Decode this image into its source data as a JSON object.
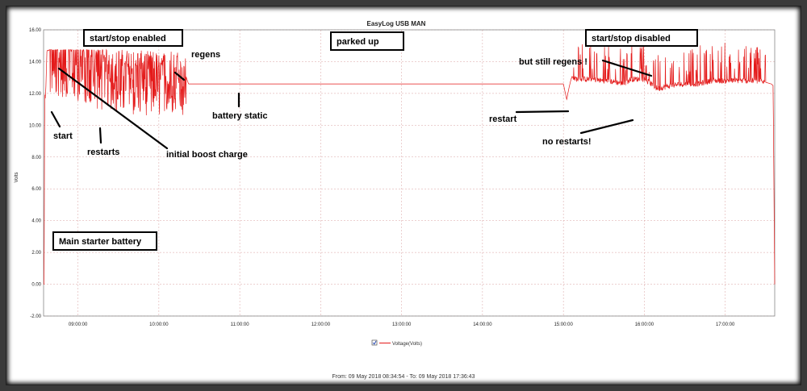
{
  "chart_data": {
    "type": "line",
    "title": "EasyLog USB MAN",
    "ylabel": "Volts",
    "xlabel": "",
    "ylim": [
      -2,
      16
    ],
    "yticks": [
      "-2.00",
      "0.00",
      "2.00",
      "4.00",
      "6.00",
      "8.00",
      "10.00",
      "12.00",
      "14.00",
      "16.00"
    ],
    "xlim_hours": [
      8.575,
      17.612
    ],
    "xticks": [
      "09:00:00",
      "10:00:00",
      "11:00:00",
      "12:00:00",
      "13:00:00",
      "14:00:00",
      "15:00:00",
      "16:00:00",
      "17:00:00"
    ],
    "grid": true,
    "line_color": "#e41a1a",
    "legend": {
      "label": "Voltage(Volts)",
      "position": "bottom-center",
      "checked": true
    },
    "footer": "From: 09 May 2018 08:34:54  -  To: 09 May 2018 17:36:43",
    "series": [
      {
        "x": [
          "08:34:54",
          "08:35:20",
          "08:35:40",
          "08:36:10",
          "08:37:00",
          "08:37:40",
          "08:38:30",
          "09:00:00",
          "09:15:00",
          "09:30:00",
          "09:45:00",
          "10:00:00",
          "10:15:00",
          "10:20:00",
          "10:22:00",
          "10:25:00",
          "10:30:00",
          "11:00:00",
          "12:00:00",
          "13:00:00",
          "14:00:00",
          "15:00:00",
          "15:02:30",
          "15:04:00",
          "15:06:00",
          "15:10:00",
          "15:20:00",
          "15:30:00",
          "15:40:00",
          "15:45:00",
          "15:50:00",
          "16:00:00",
          "16:10:00",
          "16:20:00",
          "16:30:00",
          "16:35:00",
          "16:40:00",
          "16:50:00",
          "17:00:00",
          "17:10:00",
          "17:20:00",
          "17:30:00",
          "17:34:00",
          "17:35:30",
          "17:36:43"
        ],
        "y": [
          0.0,
          12.2,
          11.6,
          12.3,
          14.7,
          14.7,
          14.7,
          14.4,
          13.9,
          13.6,
          13.5,
          13.5,
          13.5,
          13.1,
          12.6,
          12.6,
          12.6,
          12.6,
          12.6,
          12.6,
          12.6,
          12.6,
          11.6,
          12.3,
          13.0,
          12.9,
          12.9,
          12.8,
          12.7,
          12.6,
          12.9,
          12.9,
          12.3,
          12.5,
          12.6,
          12.6,
          12.6,
          12.8,
          12.8,
          12.8,
          12.8,
          12.7,
          12.6,
          12.5,
          0.0
        ]
      }
    ],
    "annotations": [
      {
        "text": "start/stop enabled",
        "boxed": true
      },
      {
        "text": "parked up",
        "boxed": true
      },
      {
        "text": "start/stop disabled",
        "boxed": true
      },
      {
        "text": "Main starter battery",
        "boxed": true
      },
      {
        "text": "regens",
        "boxed": false
      },
      {
        "text": "start",
        "boxed": false
      },
      {
        "text": "restarts",
        "boxed": false
      },
      {
        "text": "initial boost charge",
        "boxed": false
      },
      {
        "text": "battery static",
        "boxed": false
      },
      {
        "text": "but still regens !",
        "boxed": false
      },
      {
        "text": "restart",
        "boxed": false
      },
      {
        "text": "no restarts!",
        "boxed": false
      }
    ]
  }
}
